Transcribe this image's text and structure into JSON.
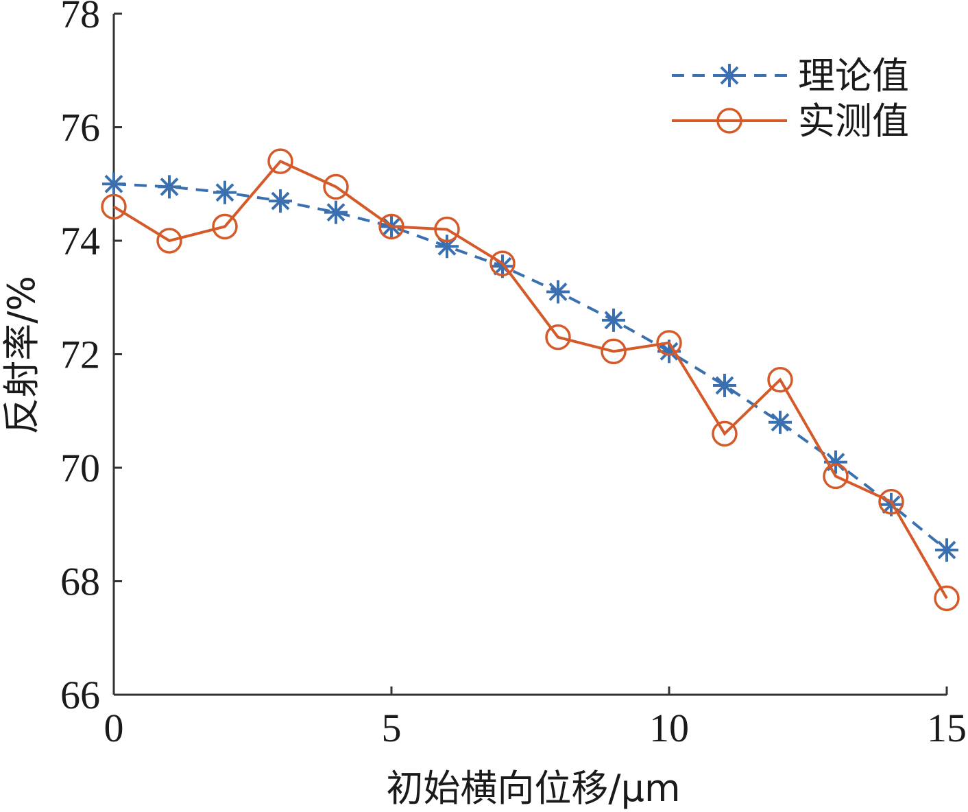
{
  "chart_data": {
    "type": "line",
    "xlabel": "初始横向位移/μm",
    "ylabel": "反射率/%",
    "xlim": [
      0,
      15
    ],
    "ylim": [
      66,
      78
    ],
    "xticks": [
      0,
      5,
      10,
      15
    ],
    "yticks": [
      66,
      68,
      70,
      72,
      74,
      76,
      78
    ],
    "grid": false,
    "legend_position": "top-right",
    "x": [
      0,
      1,
      2,
      3,
      4,
      5,
      6,
      7,
      8,
      9,
      10,
      11,
      12,
      13,
      14,
      15
    ],
    "series": [
      {
        "name": "理论值",
        "color": "#3a6fb0",
        "line_style": "dashed",
        "marker": "asterisk",
        "values": [
          75.0,
          74.95,
          74.85,
          74.7,
          74.5,
          74.25,
          73.9,
          73.55,
          73.1,
          72.6,
          72.05,
          71.45,
          70.8,
          70.1,
          69.35,
          68.55
        ]
      },
      {
        "name": "实测值",
        "color": "#d45a2a",
        "line_style": "solid",
        "marker": "circle",
        "values": [
          74.6,
          74.0,
          74.25,
          75.4,
          74.95,
          74.25,
          74.2,
          73.6,
          72.3,
          72.05,
          72.2,
          70.6,
          71.55,
          69.85,
          69.4,
          67.7
        ]
      }
    ]
  }
}
